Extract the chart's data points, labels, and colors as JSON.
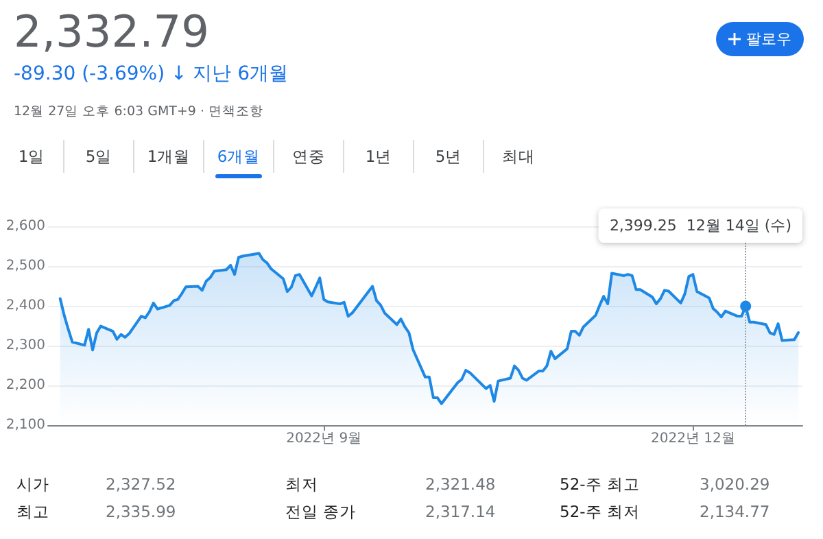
{
  "chart_data": {
    "type": "area",
    "title": "2,332.79",
    "subtitle": "-89.30 (-3.69%) ↓ 지난 6개월",
    "x": [
      "2022-06-28",
      "2022-06-29",
      "2022-06-30",
      "2022-07-01",
      "2022-07-04",
      "2022-07-05",
      "2022-07-06",
      "2022-07-07",
      "2022-07-08",
      "2022-07-11",
      "2022-07-12",
      "2022-07-13",
      "2022-07-14",
      "2022-07-15",
      "2022-07-18",
      "2022-07-19",
      "2022-07-20",
      "2022-07-21",
      "2022-07-22",
      "2022-07-25",
      "2022-07-26",
      "2022-07-27",
      "2022-07-28",
      "2022-07-29",
      "2022-08-01",
      "2022-08-02",
      "2022-08-03",
      "2022-08-04",
      "2022-08-05",
      "2022-08-08",
      "2022-08-09",
      "2022-08-10",
      "2022-08-11",
      "2022-08-12",
      "2022-08-16",
      "2022-08-17",
      "2022-08-18",
      "2022-08-19",
      "2022-08-22",
      "2022-08-23",
      "2022-08-24",
      "2022-08-25",
      "2022-08-26",
      "2022-08-29",
      "2022-08-30",
      "2022-08-31",
      "2022-09-01",
      "2022-09-02",
      "2022-09-05",
      "2022-09-06",
      "2022-09-07",
      "2022-09-08",
      "2022-09-13",
      "2022-09-14",
      "2022-09-15",
      "2022-09-16",
      "2022-09-19",
      "2022-09-20",
      "2022-09-21",
      "2022-09-22",
      "2022-09-23",
      "2022-09-26",
      "2022-09-27",
      "2022-09-28",
      "2022-09-29",
      "2022-09-30",
      "2022-10-04",
      "2022-10-05",
      "2022-10-06",
      "2022-10-07",
      "2022-10-11",
      "2022-10-12",
      "2022-10-13",
      "2022-10-14",
      "2022-10-17",
      "2022-10-18",
      "2022-10-19",
      "2022-10-20",
      "2022-10-21",
      "2022-10-24",
      "2022-10-25",
      "2022-10-26",
      "2022-10-27",
      "2022-10-28",
      "2022-10-31",
      "2022-11-01",
      "2022-11-02",
      "2022-11-03",
      "2022-11-04",
      "2022-11-07",
      "2022-11-08",
      "2022-11-09",
      "2022-11-10",
      "2022-11-11",
      "2022-11-14",
      "2022-11-15",
      "2022-11-16",
      "2022-11-17",
      "2022-11-18",
      "2022-11-21",
      "2022-11-22",
      "2022-11-23",
      "2022-11-24",
      "2022-11-25",
      "2022-11-28",
      "2022-11-29",
      "2022-11-30",
      "2022-12-01",
      "2022-12-02",
      "2022-12-05",
      "2022-12-06",
      "2022-12-07",
      "2022-12-08",
      "2022-12-09",
      "2022-12-12",
      "2022-12-13",
      "2022-12-14",
      "2022-12-15",
      "2022-12-16",
      "2022-12-19",
      "2022-12-20",
      "2022-12-21",
      "2022-12-22",
      "2022-12-23",
      "2022-12-26",
      "2022-12-27"
    ],
    "series": [
      {
        "color": "#1e88e5",
        "values": [
          2418,
          2376,
          2341,
          2309,
          2301,
          2341,
          2289,
          2332,
          2349,
          2336,
          2316,
          2328,
          2321,
          2330,
          2374,
          2370,
          2385,
          2407,
          2392,
          2401,
          2413,
          2416,
          2431,
          2448,
          2449,
          2439,
          2462,
          2471,
          2487,
          2491,
          2502,
          2479,
          2522,
          2525,
          2532,
          2516,
          2508,
          2493,
          2468,
          2436,
          2447,
          2476,
          2479,
          2425,
          2447,
          2470,
          2416,
          2410,
          2405,
          2409,
          2374,
          2382,
          2449,
          2413,
          2402,
          2382,
          2353,
          2367,
          2347,
          2332,
          2290,
          2221,
          2221,
          2169,
          2169,
          2154,
          2207,
          2215,
          2238,
          2232,
          2192,
          2200,
          2160,
          2211,
          2218,
          2249,
          2238,
          2218,
          2213,
          2236,
          2236,
          2249,
          2286,
          2267,
          2292,
          2336,
          2336,
          2326,
          2347,
          2376,
          2401,
          2424,
          2405,
          2482,
          2476,
          2479,
          2476,
          2441,
          2441,
          2422,
          2405,
          2418,
          2439,
          2437,
          2407,
          2430,
          2474,
          2479,
          2436,
          2420,
          2393,
          2384,
          2372,
          2387,
          2374,
          2374,
          2399.25,
          2359,
          2359,
          2353,
          2332,
          2328,
          2355,
          2313,
          2315,
          2332.79
        ]
      }
    ],
    "xlim": [
      "2022-06-25",
      "2022-12-28"
    ],
    "xticks": [
      {
        "value": "2022-09-01",
        "label": "2022년 9월"
      },
      {
        "value": "2022-12-01",
        "label": "2022년 12월"
      }
    ],
    "ylim": [
      2100,
      2600
    ],
    "yticks": [
      {
        "value": 2100,
        "label": "2,100"
      },
      {
        "value": 2200,
        "label": "2,200"
      },
      {
        "value": 2300,
        "label": "2,300"
      },
      {
        "value": 2400,
        "label": "2,400"
      },
      {
        "value": 2500,
        "label": "2,500"
      },
      {
        "value": 2600,
        "label": "2,600"
      }
    ],
    "grid": "y",
    "marker": "none",
    "line_style": "solid",
    "ref_lines": [
      {
        "axis": "x",
        "value": "2022-12-14",
        "color": "#9aa0a6",
        "line_style": "dotted"
      }
    ],
    "annotations": [
      "12월 27일 오후 6:03 GMT+9 · 면책조항",
      "1일",
      "5일",
      "1개월",
      "6개월",
      "연중",
      "1년",
      "5년",
      "최대",
      "팔로우",
      "시가",
      "2,327.52",
      "최저",
      "2,321.48",
      "52-주 최고",
      "3,020.29",
      "최고",
      "2,335.99",
      "전일 종가",
      "2,317.14",
      "52-주 최저",
      "2,134.77",
      "2,399.25  12월 14일 (수)"
    ]
  }
}
